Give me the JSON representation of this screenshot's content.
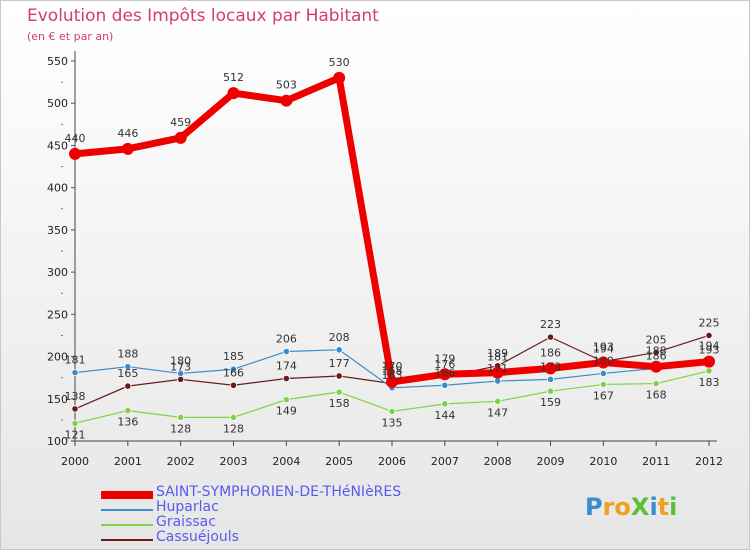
{
  "title": "Evolution des Impôts locaux par Habitant",
  "subtitle": "(en € et par an)",
  "logo": "ProXiti",
  "chart_data": {
    "type": "line",
    "title": "Evolution des Impôts locaux par Habitant",
    "subtitle": "(en € et par an)",
    "xlabel": "",
    "ylabel": "",
    "ylim": [
      100,
      550
    ],
    "yticks": [
      100,
      150,
      200,
      250,
      300,
      350,
      400,
      450,
      500,
      550
    ],
    "categories": [
      "2000",
      "2001",
      "2002",
      "2003",
      "2004",
      "2005",
      "2006",
      "2007",
      "2008",
      "2009",
      "2010",
      "2011",
      "2012"
    ],
    "legend_position": "bottom-left",
    "series": [
      {
        "name": "Cassuéjouls",
        "color": "#6b1a1a",
        "values": [
          138,
          165,
          173,
          166,
          174,
          177,
          168,
          176,
          189,
          223,
          194,
          205,
          225
        ]
      },
      {
        "name": "Graissac",
        "color": "#7fd24a",
        "values": [
          121,
          136,
          128,
          128,
          149,
          158,
          135,
          144,
          147,
          159,
          167,
          168,
          183
        ]
      },
      {
        "name": "Huparlac",
        "color": "#3a8ccc",
        "values": [
          181,
          188,
          180,
          185,
          206,
          208,
          163,
          166,
          171,
          173,
          180,
          186,
          193
        ]
      },
      {
        "name": "SAINT-SYMPHORIEN-DE-THéNIèRES",
        "color": "#ee0000",
        "values": [
          440,
          446,
          459,
          512,
          503,
          530,
          170,
          179,
          181,
          186,
          193,
          188,
          194
        ]
      }
    ]
  }
}
